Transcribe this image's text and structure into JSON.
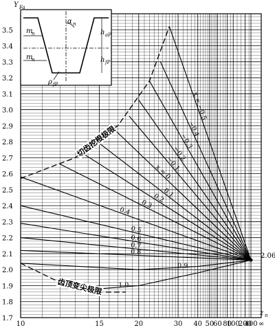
{
  "chart_data": {
    "type": "line",
    "ylabel": "Y",
    "ylabel_sub": "Fa",
    "xlabel": "z",
    "xlabel_sub": "n",
    "ylim": [
      1.7,
      3.6
    ],
    "y_ticks": [
      1.7,
      1.8,
      1.9,
      2.0,
      2.1,
      2.2,
      2.3,
      2.4,
      2.5,
      2.6,
      2.7,
      2.8,
      2.9,
      3.0,
      3.1,
      3.2,
      3.3,
      3.4,
      3.5
    ],
    "x_ticks": [
      {
        "value": 10,
        "label": "10"
      },
      {
        "value": 15,
        "label": "15"
      },
      {
        "value": 20,
        "label": "20"
      },
      {
        "value": 30,
        "label": "30"
      },
      {
        "value": 40,
        "label": "40"
      },
      {
        "value": 50,
        "label": "50"
      },
      {
        "value": 60,
        "label": "60"
      },
      {
        "value": 80,
        "label": "80"
      },
      {
        "value": 100,
        "label": "100"
      },
      {
        "value": 200,
        "label": "200"
      },
      {
        "value": 400,
        "label": "400"
      },
      {
        "value": "inf",
        "label": "∞"
      }
    ],
    "convergence_value": 2.06,
    "convergence_label": "2.06",
    "series": [
      {
        "name": "x = -0.5",
        "label": "x = −0.5",
        "points": [
          [
            27,
            3.52
          ],
          [
            400,
            2.06
          ]
        ]
      },
      {
        "name": "-0.4",
        "label": "−0.4",
        "points": [
          [
            24.5,
            3.3
          ],
          [
            400,
            2.06
          ]
        ]
      },
      {
        "name": "-0.3",
        "label": "−0.3",
        "points": [
          [
            22,
            3.18
          ],
          [
            400,
            2.06
          ]
        ]
      },
      {
        "name": "-0.2",
        "label": "−0.2",
        "points": [
          [
            20,
            3.06
          ],
          [
            400,
            2.06
          ]
        ]
      },
      {
        "name": "-0.1",
        "label": "−0.1",
        "points": [
          [
            18.5,
            2.96
          ],
          [
            400,
            2.06
          ]
        ]
      },
      {
        "name": "0",
        "label": "x = 0",
        "points": [
          [
            16.5,
            2.88
          ],
          [
            400,
            2.06
          ]
        ]
      },
      {
        "name": "0.1",
        "label": "0.1",
        "points": [
          [
            15,
            2.79
          ],
          [
            400,
            2.06
          ]
        ]
      },
      {
        "name": "0.2",
        "label": "0.2",
        "points": [
          [
            13.5,
            2.73
          ],
          [
            400,
            2.06
          ]
        ]
      },
      {
        "name": "0.3",
        "label": "0.3",
        "points": [
          [
            12,
            2.66
          ],
          [
            400,
            2.06
          ]
        ]
      },
      {
        "name": "0.4",
        "label": "0.4",
        "points": [
          [
            10,
            2.58
          ],
          [
            400,
            2.06
          ]
        ]
      },
      {
        "name": "0.5",
        "label": "0.5",
        "points": [
          [
            10,
            2.4
          ],
          [
            400,
            2.06
          ]
        ]
      },
      {
        "name": "0.6",
        "label": "0.6",
        "points": [
          [
            10,
            2.29
          ],
          [
            400,
            2.06
          ]
        ]
      },
      {
        "name": "0.7",
        "label": "0.7",
        "points": [
          [
            10,
            2.2
          ],
          [
            400,
            2.06
          ]
        ]
      },
      {
        "name": "0.8",
        "label": "0.8",
        "points": [
          [
            10,
            2.12
          ],
          [
            400,
            2.06
          ]
        ]
      },
      {
        "name": "0.9",
        "label": "0.9",
        "points": [
          [
            10,
            2.04
          ],
          [
            20,
            2.0
          ],
          [
            40,
            2.02
          ],
          [
            400,
            2.06
          ]
        ]
      },
      {
        "name": "1.0",
        "label": "1.0",
        "points": [
          [
            12,
            1.92
          ],
          [
            15,
            1.88
          ],
          [
            20,
            1.9
          ],
          [
            40,
            1.98
          ],
          [
            400,
            2.06
          ]
        ]
      }
    ],
    "boundaries": [
      {
        "label": "切齿挖根极限",
        "points": [
          [
            10,
            2.57
          ],
          [
            13,
            2.7
          ],
          [
            17,
            2.9
          ],
          [
            22,
            3.18
          ],
          [
            27,
            3.52
          ]
        ]
      },
      {
        "label": "齿顶变尖极限",
        "points": [
          [
            10,
            2.04
          ],
          [
            12,
            1.92
          ],
          [
            15,
            1.86
          ],
          [
            18,
            1.86
          ]
        ]
      }
    ],
    "inset": {
      "labels": [
        "α",
        "n",
        "m",
        "n",
        "m",
        "n",
        "h",
        "aP",
        "h",
        "fP",
        "ρ",
        "fP"
      ]
    }
  }
}
